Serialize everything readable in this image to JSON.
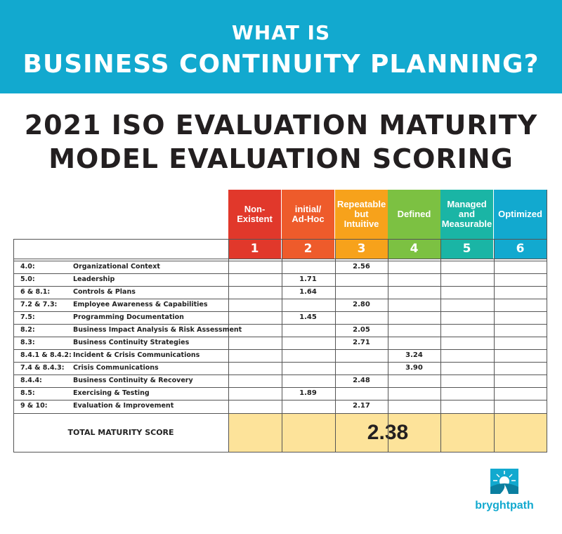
{
  "banner": {
    "line1": "WHAT IS",
    "line2": "BUSINESS CONTINUITY PLANNING?"
  },
  "heading": {
    "line1": "2021 ISO EVALUATION MATURITY",
    "line2": "MODEL EVALUATION SCORING"
  },
  "levels": [
    {
      "label": "Non-\nExistent",
      "number": "1",
      "color": "#e1382b"
    },
    {
      "label": "initial/\nAd-Hoc",
      "number": "2",
      "color": "#ee5b2b"
    },
    {
      "label": "Repeatable\nbut\nIntuitive",
      "number": "3",
      "color": "#f7a21b"
    },
    {
      "label": "Defined",
      "number": "4",
      "color": "#7cc142"
    },
    {
      "label": "Managed\nand\nMeasurable",
      "number": "5",
      "color": "#1ab5a5"
    },
    {
      "label": "Optimized",
      "number": "6",
      "color": "#12a9cf"
    }
  ],
  "rows": [
    {
      "code": "4.0:",
      "name": "Organizational Context",
      "score": "2.56",
      "level": 3
    },
    {
      "code": "5.0:",
      "name": "Leadership",
      "score": "1.71",
      "level": 2
    },
    {
      "code": "6 & 8.1:",
      "name": "Controls & Plans",
      "score": "1.64",
      "level": 2
    },
    {
      "code": "7.2 & 7.3:",
      "name": "Employee Awareness & Capabilities",
      "score": "2.80",
      "level": 3
    },
    {
      "code": "7.5:",
      "name": "Programming Documentation",
      "score": "1.45",
      "level": 2
    },
    {
      "code": "8.2:",
      "name": "Business Impact Analysis & Risk Assessment",
      "score": "2.05",
      "level": 3
    },
    {
      "code": "8.3:",
      "name": "Business Continuity Strategies",
      "score": "2.71",
      "level": 3
    },
    {
      "code": "8.4.1 & 8.4.2:",
      "name": "Incident & Crisis Communications",
      "score": "3.24",
      "level": 4
    },
    {
      "code": "7.4 & 8.4.3:",
      "name": "Crisis Communications",
      "score": "3.90",
      "level": 4
    },
    {
      "code": "8.4.4:",
      "name": "Business Continuity & Recovery",
      "score": "2.48",
      "level": 3
    },
    {
      "code": "8.5:",
      "name": "Exercising & Testing",
      "score": "1.89",
      "level": 2
    },
    {
      "code": "9 & 10:",
      "name": "Evaluation & Improvement",
      "score": "2.17",
      "level": 3
    }
  ],
  "total": {
    "label": "TOTAL MATURITY SCORE",
    "value": "2.38",
    "color": "#fde39a"
  },
  "logo": {
    "text": "bryghtpath",
    "color": "#12a9cf"
  }
}
